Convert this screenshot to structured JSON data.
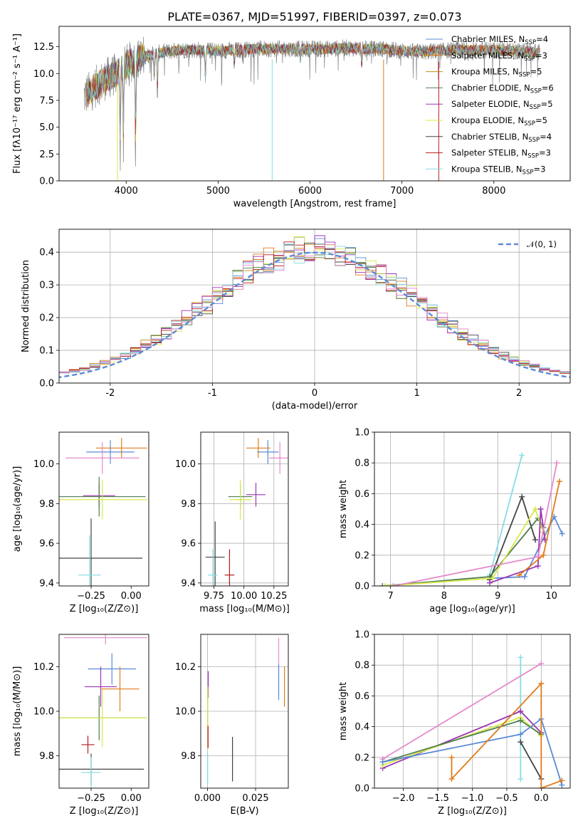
{
  "colors": {
    "chabrier_miles": "#5b8bd6",
    "salpeter_miles": "#e07b1a",
    "kroupa_miles": "#c58a12",
    "chabrier_elodie": "#4f7f4f",
    "salpeter_elodie": "#9b34b4",
    "kroupa_elodie": "#d9e84a",
    "chabrier_stelib": "#444444",
    "salpeter_stelib": "#b51b1b",
    "kroupa_stelib": "#86dce6",
    "pink": "#e58acb",
    "lime": "#c8e85a",
    "spectrum_data": "#808080",
    "gaussian": "#5b8bd6",
    "grid": "#b0b0b0"
  },
  "chart_data": [
    {
      "id": "spectrum",
      "type": "line",
      "title": "PLATE=0367, MJD=51997, FIBERID=0397, z=0.073",
      "xlabel": "wavelength [Angstrom, rest frame]",
      "ylabel": "Flux [fλ10⁻¹⁷ erg cm⁻² s⁻¹ A⁻¹]",
      "xlim": [
        3270,
        8830
      ],
      "ylim": [
        0,
        14.4
      ],
      "xticks": [
        4000,
        5000,
        6000,
        7000,
        8000
      ],
      "yticks": [
        0.0,
        2.5,
        5.0,
        7.5,
        10.0,
        12.5
      ],
      "grid": false,
      "legend_position": "top-right",
      "legend": [
        {
          "label": "Chabrier MILES, N",
          "sub": "SSP",
          "tail": "=4",
          "color": "#5b8bd6"
        },
        {
          "label": "Salpeter MILES, N",
          "sub": "SSP",
          "tail": "=3",
          "color": "#e07b1a"
        },
        {
          "label": "Kroupa MILES, N",
          "sub": "SSP",
          "tail": "=5",
          "color": "#c58a12"
        },
        {
          "label": "Chabrier ELODIE, N",
          "sub": "SSP",
          "tail": "=6",
          "color": "#4f7f4f"
        },
        {
          "label": "Salpeter ELODIE, N",
          "sub": "SSP",
          "tail": "=5",
          "color": "#9b34b4"
        },
        {
          "label": "Kroupa ELODIE, N",
          "sub": "SSP",
          "tail": "=5",
          "color": "#d9e84a"
        },
        {
          "label": "Chabrier STELIB, N",
          "sub": "SSP",
          "tail": "=4",
          "color": "#444444"
        },
        {
          "label": "Salpeter STELIB, N",
          "sub": "SSP",
          "tail": "=3",
          "color": "#b51b1b"
        },
        {
          "label": "Kroupa STELIB, N",
          "sub": "SSP",
          "tail": "=3",
          "color": "#86dce6"
        }
      ],
      "profile": [
        [
          3530,
          7.8
        ],
        [
          3600,
          8.3
        ],
        [
          3700,
          9.0
        ],
        [
          3800,
          9.6
        ],
        [
          3900,
          10.0
        ],
        [
          4000,
          10.8
        ],
        [
          4100,
          11.3
        ],
        [
          4200,
          11.6
        ],
        [
          4400,
          12.0
        ],
        [
          4600,
          12.2
        ],
        [
          4800,
          12.2
        ],
        [
          5000,
          12.1
        ],
        [
          5200,
          12.2
        ],
        [
          5400,
          12.3
        ],
        [
          5600,
          12.3
        ],
        [
          5800,
          12.3
        ],
        [
          6000,
          12.3
        ],
        [
          6200,
          12.3
        ],
        [
          6400,
          12.4
        ],
        [
          6600,
          12.3
        ],
        [
          6800,
          12.3
        ],
        [
          7000,
          12.1
        ],
        [
          7200,
          12.0
        ],
        [
          7400,
          12.1
        ],
        [
          7600,
          12.2
        ],
        [
          7800,
          12.2
        ],
        [
          8000,
          12.2
        ],
        [
          8200,
          12.1
        ],
        [
          8400,
          12.0
        ],
        [
          8500,
          12.0
        ]
      ],
      "absorption": [
        [
          3935,
          4.2
        ],
        [
          3970,
          4.8
        ],
        [
          4102,
          3.0
        ],
        [
          4304,
          9.8
        ],
        [
          4340,
          8.0
        ],
        [
          4861,
          8.6
        ],
        [
          5175,
          10.4
        ],
        [
          5270,
          11.0
        ],
        [
          5895,
          10.8
        ],
        [
          6563,
          10.2
        ],
        [
          8542,
          11.2
        ]
      ],
      "spikes": [
        [
          3905,
          0
        ],
        [
          5588,
          0
        ],
        [
          6800,
          0
        ],
        [
          7400,
          0
        ]
      ]
    },
    {
      "id": "residuals",
      "type": "histogram",
      "xlabel": "(data-model)/error",
      "ylabel": "Normed distribution",
      "xlim": [
        -2.5,
        2.5
      ],
      "ylim": [
        0,
        0.47
      ],
      "xticks": [
        -2,
        -1,
        0,
        1,
        2
      ],
      "yticks": [
        0.0,
        0.1,
        0.2,
        0.3,
        0.4
      ],
      "grid": true,
      "legend_position": "top-right",
      "legend": [
        {
          "label": "𝒩(0, 1)",
          "color": "#5b8bd6",
          "style": "dashed"
        }
      ],
      "bin_width": 0.1,
      "gaussian": {
        "mean": 0,
        "sigma": 1
      }
    },
    {
      "id": "age-vs-Z",
      "type": "errorbar",
      "xlabel": "Z [log₁₀(Z/Z⊙)]",
      "ylabel": "age  [log₁₀(age/yr)]",
      "xlim": [
        -0.45,
        0.11
      ],
      "ylim": [
        9.385,
        10.16
      ],
      "xticks": [
        -0.25,
        0.0
      ],
      "xticklabels": [
        "−0.25",
        "0.00"
      ],
      "yticks": [
        9.4,
        9.6,
        9.8,
        10.0
      ],
      "yticklabels": [
        "9.4",
        "9.6",
        "9.8",
        "10.0"
      ],
      "grid": false,
      "points": [
        {
          "x": -0.13,
          "y": 10.06,
          "xerr": 0.15,
          "yerr": 0.06,
          "color": "#5b8bd6"
        },
        {
          "x": -0.06,
          "y": 10.08,
          "xerr": 0.16,
          "yerr": 0.05,
          "color": "#e07b1a"
        },
        {
          "x": -0.18,
          "y": 10.03,
          "xerr": 0.23,
          "yerr": 0.08,
          "color": "#e58acb"
        },
        {
          "x": -0.2,
          "y": 9.84,
          "xerr": 0.1,
          "yerr": 0.06,
          "color": "#9b34b4"
        },
        {
          "x": -0.2,
          "y": 9.835,
          "xerr": 0.29,
          "yerr": 0.1,
          "color": "#4f7f4f"
        },
        {
          "x": -0.18,
          "y": 9.82,
          "xerr": 0.28,
          "yerr": 0.1,
          "color": "#d9e84a"
        },
        {
          "x": -0.25,
          "y": 9.525,
          "xerr": 0.32,
          "yerr": 0.2,
          "color": "#444444"
        },
        {
          "x": -0.26,
          "y": 9.44,
          "xerr": 0.07,
          "yerr": 0.2,
          "color": "#86dce6"
        }
      ]
    },
    {
      "id": "age-vs-mass",
      "type": "errorbar",
      "xlabel": "mass [log₁₀(M/M⊙)]",
      "ylabel": "",
      "xlim": [
        9.64,
        10.37
      ],
      "ylim": [
        9.385,
        10.16
      ],
      "xticks": [
        9.75,
        10.0,
        10.25
      ],
      "xticklabels": [
        "9.75",
        "10.00",
        "10.25"
      ],
      "yticks": [
        9.4,
        9.6,
        9.8,
        10.0
      ],
      "yticklabels": [
        "9.4",
        "9.6",
        "9.8",
        "10.0"
      ],
      "grid": true,
      "points": [
        {
          "x": 10.2,
          "y": 10.06,
          "xerr": 0.09,
          "yerr": 0.06,
          "color": "#5b8bd6"
        },
        {
          "x": 10.12,
          "y": 10.08,
          "xerr": 0.1,
          "yerr": 0.05,
          "color": "#e07b1a"
        },
        {
          "x": 10.3,
          "y": 10.03,
          "xerr": 0.09,
          "yerr": 0.08,
          "color": "#e58acb"
        },
        {
          "x": 10.1,
          "y": 9.845,
          "xerr": 0.08,
          "yerr": 0.06,
          "color": "#9b34b4"
        },
        {
          "x": 9.97,
          "y": 9.835,
          "xerr": 0.1,
          "yerr": 0.06,
          "color": "#4f7f4f"
        },
        {
          "x": 9.97,
          "y": 9.82,
          "xerr": 0.09,
          "yerr": 0.1,
          "color": "#d9e84a"
        },
        {
          "x": 9.76,
          "y": 9.53,
          "xerr": 0.08,
          "yerr": 0.18,
          "color": "#444444"
        },
        {
          "x": 9.88,
          "y": 9.44,
          "xerr": 0.04,
          "yerr": 0.13,
          "color": "#b51b1b"
        },
        {
          "x": 9.74,
          "y": 9.44,
          "xerr": 0.04,
          "yerr": 0.13,
          "color": "#86dce6"
        }
      ]
    },
    {
      "id": "weight-vs-age",
      "type": "line",
      "xlabel": "age  [log₁₀(age/yr)]",
      "ylabel": "mass weight",
      "xlim": [
        6.7,
        10.35
      ],
      "ylim": [
        0,
        1.0
      ],
      "xticks": [
        7,
        8,
        9,
        10
      ],
      "xticklabels": [
        "7",
        "8",
        "9",
        "10"
      ],
      "yticks": [
        0.0,
        0.2,
        0.4,
        0.6,
        0.8,
        1.0
      ],
      "yticklabels": [
        "0.0",
        "0.2",
        "0.4",
        "0.6",
        "0.8",
        "1.0"
      ],
      "grid": true,
      "series": [
        {
          "color": "#86dce6",
          "points": [
            [
              8.85,
              0.07
            ],
            [
              9.45,
              0.85
            ]
          ]
        },
        {
          "color": "#5b8bd6",
          "points": [
            [
              8.9,
              0.05
            ],
            [
              9.5,
              0.06
            ],
            [
              10.05,
              0.45
            ],
            [
              10.2,
              0.34
            ]
          ]
        },
        {
          "color": "#444444",
          "points": [
            [
              8.85,
              0.04
            ],
            [
              9.45,
              0.58
            ],
            [
              9.7,
              0.3
            ]
          ]
        },
        {
          "color": "#4f7f4f",
          "points": [
            [
              6.85,
              0.0
            ],
            [
              8.85,
              0.06
            ],
            [
              9.75,
              0.44
            ],
            [
              9.85,
              0.38
            ]
          ]
        },
        {
          "color": "#d9e84a",
          "points": [
            [
              6.9,
              0.0
            ],
            [
              8.9,
              0.05
            ],
            [
              9.7,
              0.5
            ],
            [
              9.85,
              0.35
            ]
          ]
        },
        {
          "color": "#9b34b4",
          "points": [
            [
              8.85,
              0.02
            ],
            [
              9.75,
              0.13
            ],
            [
              9.8,
              0.5
            ],
            [
              9.88,
              0.3
            ]
          ]
        },
        {
          "color": "#e58acb",
          "points": [
            [
              7.05,
              0.0
            ],
            [
              9.75,
              0.19
            ],
            [
              10.1,
              0.8
            ]
          ]
        },
        {
          "color": "#e07b1a",
          "points": [
            [
              9.4,
              0.07
            ],
            [
              9.85,
              0.2
            ],
            [
              10.15,
              0.68
            ]
          ]
        }
      ]
    },
    {
      "id": "mass-vs-Z",
      "type": "errorbar",
      "xlabel": "Z [log₁₀(Z/Z⊙)]",
      "ylabel": "mass [log₁₀(M/M⊙)]",
      "xlim": [
        -0.45,
        0.11
      ],
      "ylim": [
        9.655,
        10.345
      ],
      "xticks": [
        -0.25,
        0.0
      ],
      "xticklabels": [
        "−0.25",
        "0.00"
      ],
      "yticks": [
        9.8,
        10.0,
        10.2
      ],
      "yticklabels": [
        "9.8",
        "10.0",
        "10.2"
      ],
      "grid": false,
      "points": [
        {
          "x": -0.16,
          "y": 10.33,
          "xerr": 0.26,
          "yerr": 0.03,
          "color": "#e58acb"
        },
        {
          "x": -0.12,
          "y": 10.19,
          "xerr": 0.15,
          "yerr": 0.07,
          "color": "#5b8bd6"
        },
        {
          "x": -0.19,
          "y": 10.11,
          "xerr": 0.1,
          "yerr": 0.09,
          "color": "#9b34b4"
        },
        {
          "x": -0.07,
          "y": 10.1,
          "xerr": 0.12,
          "yerr": 0.1,
          "color": "#e07b1a"
        },
        {
          "x": -0.2,
          "y": 9.97,
          "xerr": 0.29,
          "yerr": 0.1,
          "color": "#4f7f4f"
        },
        {
          "x": -0.18,
          "y": 9.97,
          "xerr": 0.28,
          "yerr": 0.13,
          "color": "#d9e84a"
        },
        {
          "x": -0.27,
          "y": 9.85,
          "xerr": 0.04,
          "yerr": 0.04,
          "color": "#b51b1b"
        },
        {
          "x": -0.25,
          "y": 9.74,
          "xerr": 0.33,
          "yerr": 0.07,
          "color": "#444444"
        },
        {
          "x": -0.25,
          "y": 9.725,
          "xerr": 0.06,
          "yerr": 0.07,
          "color": "#86dce6"
        }
      ]
    },
    {
      "id": "mass-vs-ebv",
      "type": "errorbar",
      "xlabel": "E(B-V)",
      "ylabel": "",
      "xlim": [
        -0.0035,
        0.042
      ],
      "ylim": [
        9.655,
        10.345
      ],
      "xticks": [
        0.0,
        0.025
      ],
      "xticklabels": [
        "0.000",
        "0.025"
      ],
      "yticks": [
        9.8,
        10.0,
        10.2
      ],
      "yticklabels": [
        "9.8",
        "10.0",
        "10.2"
      ],
      "grid": true,
      "points": [
        {
          "x": 0.037,
          "y": 10.2,
          "xerr": 0,
          "yerr": 0.13,
          "color": "#e58acb"
        },
        {
          "x": 0.04,
          "y": 10.11,
          "xerr": 0,
          "yerr": 0.09,
          "color": "#e07b1a"
        },
        {
          "x": 0.037,
          "y": 10.13,
          "xerr": 0,
          "yerr": 0.08,
          "color": "#5b8bd6"
        },
        {
          "x": 0.0004,
          "y": 10.12,
          "xerr": 0,
          "yerr": 0.06,
          "color": "#9b34b4"
        },
        {
          "x": 0.0002,
          "y": 9.97,
          "xerr": 0,
          "yerr": 0.14,
          "color": "#d9e84a"
        },
        {
          "x": 0.0003,
          "y": 9.885,
          "xerr": 0,
          "yerr": 0.05,
          "color": "#b51b1b"
        },
        {
          "x": 0.013,
          "y": 9.785,
          "xerr": 0,
          "yerr": 0.1,
          "color": "#444444"
        },
        {
          "x": 0.0001,
          "y": 9.74,
          "xerr": 0,
          "yerr": 0.07,
          "color": "#86dce6"
        }
      ]
    },
    {
      "id": "weight-vs-Z",
      "type": "line",
      "xlabel": "Z [log₁₀(Z/Z⊙)]",
      "ylabel": "mass weight",
      "xlim": [
        -2.42,
        0.42
      ],
      "ylim": [
        0,
        1.0
      ],
      "xticks": [
        -2.0,
        -1.5,
        -1.0,
        -0.5,
        0.0
      ],
      "xticklabels": [
        "−2.0",
        "−1.5",
        "−1.0",
        "−0.5",
        "0.0"
      ],
      "yticks": [
        0.0,
        0.2,
        0.4,
        0.6,
        0.8,
        1.0
      ],
      "yticklabels": [
        "0.0",
        "0.2",
        "0.4",
        "0.6",
        "0.8",
        "1.0"
      ],
      "grid": true,
      "series": [
        {
          "color": "#86dce6",
          "points": [
            [
              -0.3,
              0.06
            ],
            [
              -0.3,
              0.85
            ]
          ]
        },
        {
          "color": "#e58acb",
          "points": [
            [
              -2.3,
              0.19
            ],
            [
              0.0,
              0.81
            ]
          ]
        },
        {
          "color": "#9b34b4",
          "points": [
            [
              -2.3,
              0.13
            ],
            [
              -0.3,
              0.5
            ],
            [
              0.0,
              0.36
            ]
          ]
        },
        {
          "color": "#d9e84a",
          "points": [
            [
              -2.3,
              0.15
            ],
            [
              -0.3,
              0.46
            ],
            [
              0.0,
              0.34
            ]
          ]
        },
        {
          "color": "#4f7f4f",
          "points": [
            [
              -2.3,
              0.17
            ],
            [
              -0.3,
              0.44
            ],
            [
              0.0,
              0.35
            ]
          ]
        },
        {
          "color": "#5b8bd6",
          "points": [
            [
              -2.3,
              0.17
            ],
            [
              -0.3,
              0.35
            ],
            [
              0.0,
              0.45
            ],
            [
              0.3,
              0.02
            ]
          ]
        },
        {
          "color": "#444444",
          "points": [
            [
              -0.3,
              0.3
            ],
            [
              0.0,
              0.06
            ]
          ]
        },
        {
          "color": "#e07b1a",
          "points": [
            [
              -1.3,
              0.2
            ],
            [
              -1.3,
              0.06
            ],
            [
              0.0,
              0.68
            ],
            [
              0.0,
              0.0
            ],
            [
              0.3,
              0.05
            ]
          ]
        }
      ]
    }
  ]
}
